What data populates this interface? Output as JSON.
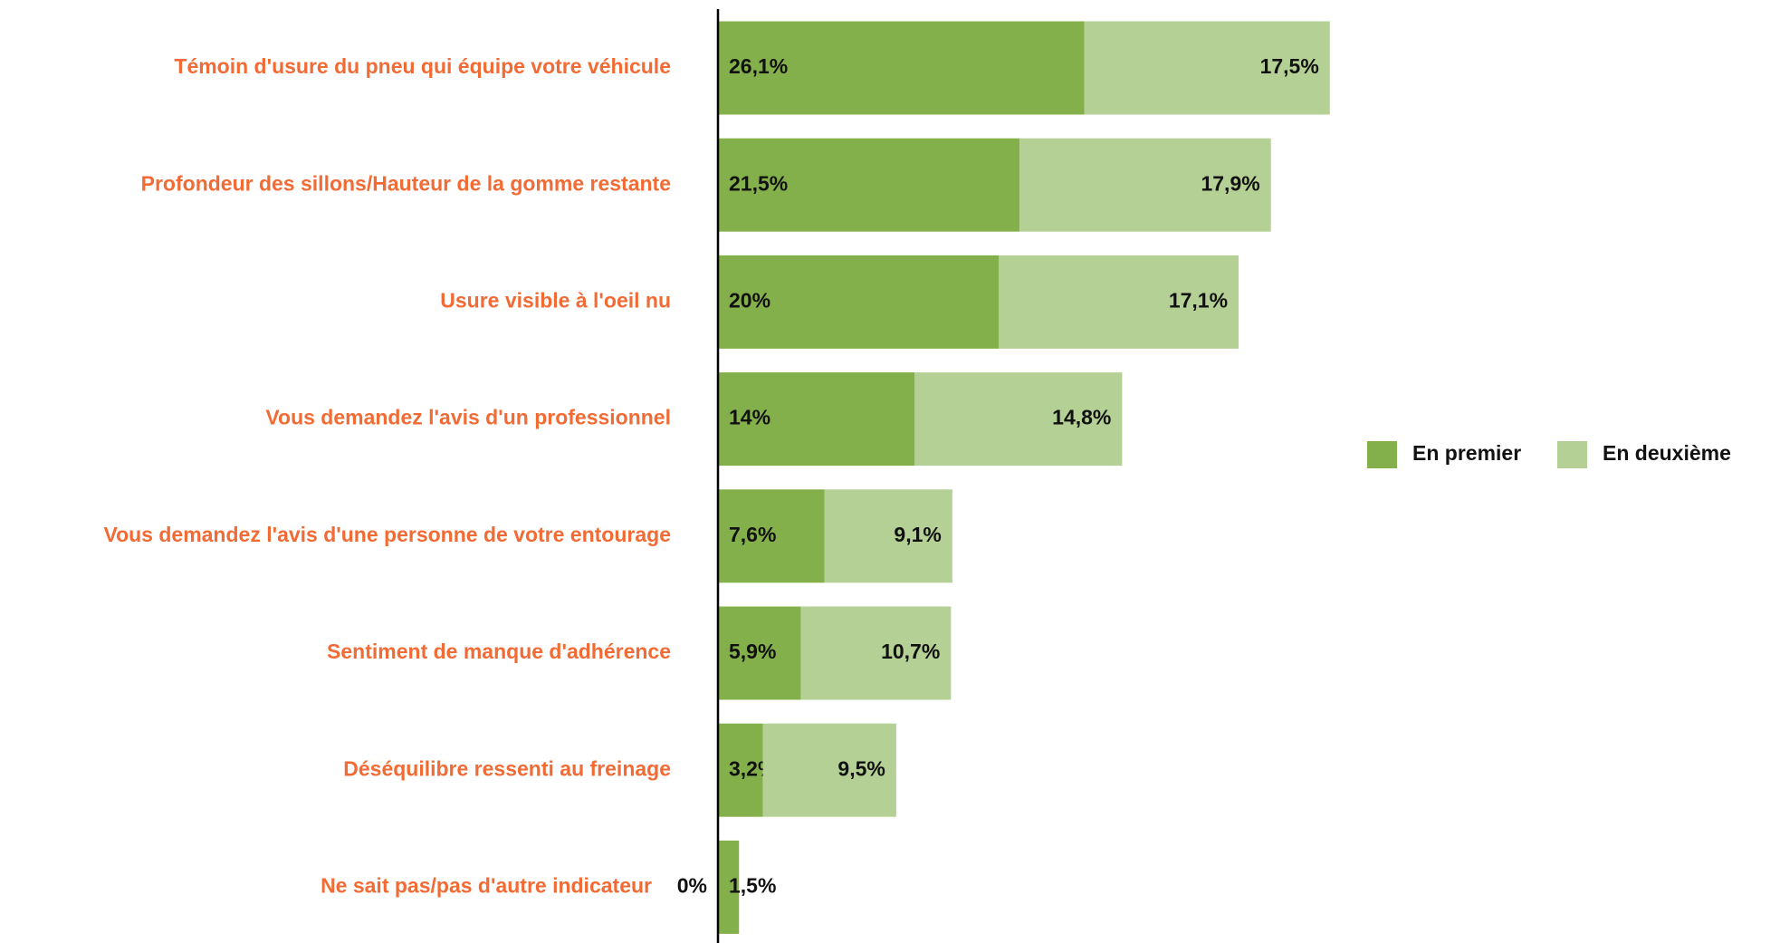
{
  "chart_data": {
    "type": "stacked-bar-horizontal",
    "categories": [
      "Témoin d'usure du pneu qui équipe votre véhicule",
      "Profondeur des sillons/Hauteur de la gomme restante",
      "Usure visible à l'oeil nu",
      "Vous demandez l'avis d'un professionnel",
      "Vous demandez l'avis d'une personne de votre entourage",
      "Sentiment de manque d'adhérence",
      "Déséquilibre ressenti au freinage",
      "Ne sait pas/pas d'autre indicateur"
    ],
    "series": [
      {
        "name": "En premier",
        "color": "#84b04b",
        "values": [
          26.1,
          21.5,
          20,
          14,
          7.6,
          5.9,
          3.2,
          1.5
        ],
        "value_labels": [
          "26,1%",
          "21,5%",
          "20%",
          "14%",
          "7,6%",
          "5,9%",
          "3,2%",
          "1,5%"
        ]
      },
      {
        "name": "En deuxième",
        "color": "#b5d095",
        "values": [
          17.5,
          17.9,
          17.1,
          14.8,
          9.1,
          10.7,
          9.5,
          0
        ],
        "value_labels": [
          "17,5%",
          "17,9%",
          "17,1%",
          "14,8%",
          "9,1%",
          "10,7%",
          "9,5%",
          "0%"
        ]
      }
    ],
    "legend": "right"
  }
}
